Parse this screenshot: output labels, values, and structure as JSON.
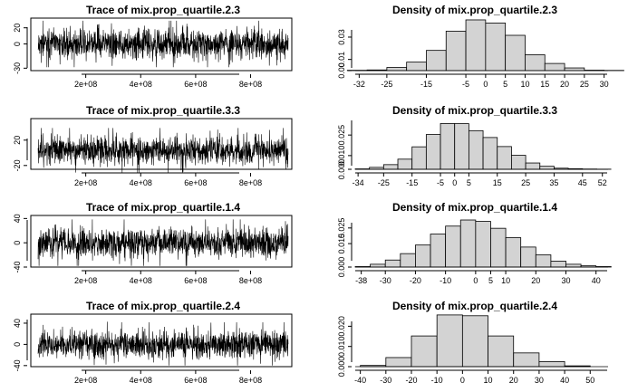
{
  "chart_data": [
    {
      "type": "line",
      "title": "Trace of mix.prop_quartile.2.3",
      "xlim": [
        0,
        950000000
      ],
      "ylim": [
        -33,
        32
      ],
      "xticks": [
        200000000,
        400000000,
        600000000,
        800000000
      ],
      "xtick_labels": [
        "2e+08",
        "4e+08",
        "6e+08",
        "8e+08"
      ],
      "yticks": [
        -30,
        0,
        20
      ],
      "ytick_labels": [
        "-30",
        "0",
        "20"
      ],
      "series": [
        {
          "seed": 11,
          "mean": 0,
          "sd": 9,
          "min": -32,
          "max": 30,
          "n": 1300
        }
      ],
      "grid": false
    },
    {
      "type": "bar",
      "title": "Density of mix.prop_quartile.2.3",
      "xlim": [
        -33,
        31
      ],
      "ylim": [
        0,
        0.047
      ],
      "bin_edges": [
        -35,
        -30,
        -25,
        -20,
        -15,
        -10,
        -5,
        0,
        5,
        10,
        15,
        20,
        25,
        30,
        35
      ],
      "values": [
        0.0003,
        0.0006,
        0.0028,
        0.0076,
        0.0181,
        0.0353,
        0.0454,
        0.0426,
        0.0316,
        0.0142,
        0.0064,
        0.0024,
        0.0004,
        0.0002
      ],
      "xticks": [
        -32,
        -25,
        -15,
        -5,
        0,
        5,
        10,
        15,
        20,
        25,
        30
      ],
      "xtick_labels": [
        "-32",
        "-25",
        "-15",
        "-5",
        "0",
        "5",
        "10",
        "15",
        "20",
        "25",
        "30"
      ],
      "yticks": [
        0,
        0.01,
        0.03
      ],
      "ytick_labels": [
        "0.00",
        "0.01",
        "0.03"
      ],
      "grid": false
    },
    {
      "type": "line",
      "title": "Trace of mix.prop_quartile.3.3",
      "xlim": [
        0,
        950000000
      ],
      "ylim": [
        -26,
        54
      ],
      "xticks": [
        200000000,
        400000000,
        600000000,
        800000000
      ],
      "xtick_labels": [
        "2e+08",
        "4e+08",
        "6e+08",
        "8e+08"
      ],
      "yticks": [
        -20,
        20
      ],
      "ytick_labels": [
        "-20",
        "20"
      ],
      "series": [
        {
          "seed": 23,
          "mean": 4,
          "sd": 11,
          "min": -34,
          "max": 52,
          "n": 1300
        }
      ],
      "grid": false
    },
    {
      "type": "bar",
      "title": "Density of mix.prop_quartile.3.3",
      "xlim": [
        -35,
        54
      ],
      "ylim": [
        0,
        0.037
      ],
      "bin_edges": [
        -35,
        -30,
        -25,
        -20,
        -15,
        -10,
        -5,
        0,
        5,
        10,
        15,
        20,
        25,
        30,
        35,
        40,
        45,
        50,
        55
      ],
      "values": [
        0.0003,
        0.0014,
        0.0034,
        0.0074,
        0.0164,
        0.0254,
        0.0334,
        0.0333,
        0.0282,
        0.0232,
        0.0166,
        0.0102,
        0.0046,
        0.0022,
        0.0008,
        0.0004,
        0.0002,
        0.0001
      ],
      "xticks": [
        -34,
        -25,
        -15,
        -5,
        0,
        5,
        15,
        25,
        35,
        45,
        52
      ],
      "xtick_labels": [
        "-34",
        "-25",
        "-15",
        "-5",
        "0",
        "5",
        "15",
        "25",
        "35",
        "45",
        "52"
      ],
      "yticks": [
        0,
        0.01,
        0.025
      ],
      "ytick_labels": [
        "0.000",
        "0.010",
        "0.025"
      ],
      "grid": false
    },
    {
      "type": "line",
      "title": "Trace of mix.prop_quartile.1.4",
      "xlim": [
        0,
        950000000
      ],
      "ylim": [
        -40,
        45
      ],
      "xticks": [
        200000000,
        400000000,
        600000000,
        800000000
      ],
      "xtick_labels": [
        "2e+08",
        "4e+08",
        "6e+08",
        "8e+08"
      ],
      "yticks": [
        -40,
        0,
        40
      ],
      "ytick_labels": [
        "-40",
        "0",
        "40"
      ],
      "series": [
        {
          "seed": 37,
          "mean": 0,
          "sd": 12,
          "min": -38,
          "max": 43,
          "n": 1300
        }
      ],
      "grid": false
    },
    {
      "type": "bar",
      "title": "Density of mix.prop_quartile.1.4",
      "xlim": [
        -40,
        44
      ],
      "ylim": [
        0,
        0.033
      ],
      "bin_edges": [
        -40,
        -35,
        -30,
        -25,
        -20,
        -15,
        -10,
        -5,
        0,
        5,
        10,
        15,
        20,
        25,
        30,
        35,
        40,
        45
      ],
      "values": [
        0.0003,
        0.0018,
        0.0045,
        0.0086,
        0.0141,
        0.0211,
        0.0262,
        0.0301,
        0.0292,
        0.0248,
        0.0188,
        0.0128,
        0.0078,
        0.0038,
        0.0018,
        0.0008,
        0.0003
      ],
      "xticks": [
        -38,
        -30,
        -20,
        -10,
        0,
        5,
        10,
        20,
        30,
        40
      ],
      "xtick_labels": [
        "-38",
        "-30",
        "-20",
        "-10",
        "0",
        "5",
        "10",
        "20",
        "30",
        "40"
      ],
      "yticks": [
        0,
        0.015,
        0.025
      ],
      "ytick_labels": [
        "0.000",
        "0.015",
        "0.025"
      ],
      "grid": false
    },
    {
      "type": "line",
      "title": "Trace of mix.prop_quartile.2.4",
      "xlim": [
        0,
        950000000
      ],
      "ylim": [
        -42,
        57
      ],
      "xticks": [
        200000000,
        400000000,
        600000000,
        800000000
      ],
      "xtick_labels": [
        "2e+08",
        "4e+08",
        "6e+08",
        "8e+08"
      ],
      "yticks": [
        -40,
        0,
        40
      ],
      "ytick_labels": [
        "-40",
        "0",
        "40"
      ],
      "series": [
        {
          "seed": 53,
          "mean": 0,
          "sd": 13,
          "min": -40,
          "max": 55,
          "n": 1300
        }
      ],
      "grid": false
    },
    {
      "type": "bar",
      "title": "Density of mix.prop_quartile.2.4",
      "xlim": [
        -42,
        57
      ],
      "ylim": [
        0,
        0.026
      ],
      "bin_edges": [
        -40,
        -30,
        -20,
        -10,
        0,
        10,
        20,
        30,
        40,
        50
      ],
      "values": [
        0.0006,
        0.0045,
        0.0152,
        0.0256,
        0.0252,
        0.0152,
        0.0068,
        0.0025,
        0.0004
      ],
      "xticks": [
        -40,
        -30,
        -20,
        -10,
        0,
        10,
        20,
        30,
        40,
        50
      ],
      "xtick_labels": [
        "-40",
        "-30",
        "-20",
        "-10",
        "0",
        "10",
        "20",
        "30",
        "40",
        "50"
      ],
      "yticks": [
        0,
        0.01,
        0.02
      ],
      "ytick_labels": [
        "0.000",
        "0.010",
        "0.020"
      ],
      "grid": false
    }
  ]
}
